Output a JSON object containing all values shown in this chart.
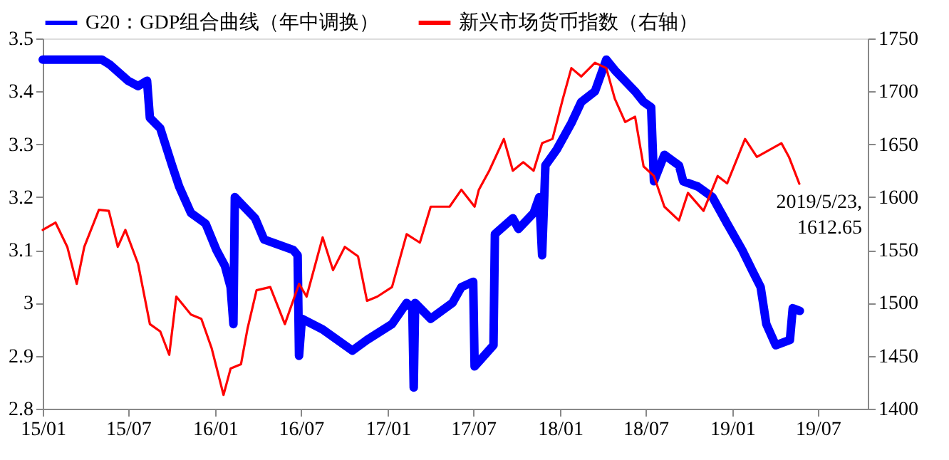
{
  "chart_data": {
    "type": "line",
    "legend": "top",
    "grid": false,
    "marker": "none",
    "line_style": "solid",
    "xlim": [
      "2015-01-01",
      "2019-10-15"
    ],
    "xticks": [
      {
        "value": "2015-01-01",
        "label": "15/01"
      },
      {
        "value": "2015-07-01",
        "label": "15/07"
      },
      {
        "value": "2016-01-01",
        "label": "16/01"
      },
      {
        "value": "2016-07-01",
        "label": "16/07"
      },
      {
        "value": "2017-01-01",
        "label": "17/01"
      },
      {
        "value": "2017-07-01",
        "label": "17/07"
      },
      {
        "value": "2018-01-01",
        "label": "18/01"
      },
      {
        "value": "2018-07-01",
        "label": "18/07"
      },
      {
        "value": "2019-01-01",
        "label": "19/01"
      },
      {
        "value": "2019-07-01",
        "label": "19/07"
      }
    ],
    "ylim": [
      2.8,
      3.5
    ],
    "yticks": [
      2.8,
      2.9,
      3,
      3.1,
      3.2,
      3.3,
      3.4,
      3.5
    ],
    "y2lim": [
      1400,
      1750
    ],
    "y2ticks": [
      1400,
      1450,
      1500,
      1550,
      1600,
      1650,
      1700,
      1750
    ],
    "annotations": [
      "2019/5/23,\n1612.65"
    ],
    "series": [
      {
        "name": "G20：GDP组合曲线（年中调换）",
        "color": "#0000ff",
        "x": [
          "2015-01-01",
          "2015-05-06",
          "2015-05-24",
          "2015-07-01",
          "2015-07-22",
          "2015-08-10",
          "2015-08-16",
          "2015-09-07",
          "2015-10-02",
          "2015-10-17",
          "2015-11-11",
          "2015-12-12",
          "2016-01-04",
          "2016-01-22",
          "2016-02-03",
          "2016-02-09",
          "2016-02-12",
          "2016-03-26",
          "2016-04-14",
          "2016-06-15",
          "2016-06-24",
          "2016-06-27",
          "2016-07-03",
          "2016-08-16",
          "2016-10-18",
          "2016-11-18",
          "2017-01-10",
          "2017-02-10",
          "2017-02-22",
          "2017-02-25",
          "2017-02-28",
          "2017-04-02",
          "2017-05-18",
          "2017-06-06",
          "2017-07-01",
          "2017-07-04",
          "2017-08-13",
          "2017-08-16",
          "2017-09-23",
          "2017-10-05",
          "2017-11-06",
          "2017-11-18",
          "2017-11-24",
          "2017-12-01",
          "2017-12-25",
          "2018-01-25",
          "2018-02-15",
          "2018-03-16",
          "2018-04-09",
          "2018-04-27",
          "2018-06-09",
          "2018-06-27",
          "2018-07-13",
          "2018-07-19",
          "2018-08-10",
          "2018-09-10",
          "2018-09-19",
          "2018-10-20",
          "2018-11-20",
          "2018-12-21",
          "2019-01-22",
          "2019-02-13",
          "2019-03-02",
          "2019-03-14",
          "2019-04-03",
          "2019-05-03",
          "2019-05-09",
          "2019-05-24"
        ],
        "values": [
          3.46,
          3.46,
          3.45,
          3.42,
          3.41,
          3.42,
          3.35,
          3.33,
          3.26,
          3.22,
          3.17,
          3.15,
          3.1,
          3.07,
          3.03,
          2.96,
          3.2,
          3.16,
          3.12,
          3.1,
          3.09,
          2.9,
          2.97,
          2.95,
          2.91,
          2.93,
          2.96,
          3.0,
          2.99,
          2.84,
          3.0,
          2.97,
          3.0,
          3.03,
          3.04,
          2.88,
          2.92,
          3.13,
          3.16,
          3.14,
          3.17,
          3.2,
          3.09,
          3.26,
          3.29,
          3.34,
          3.38,
          3.4,
          3.46,
          3.44,
          3.4,
          3.38,
          3.37,
          3.23,
          3.28,
          3.26,
          3.23,
          3.22,
          3.2,
          3.15,
          3.1,
          3.06,
          3.03,
          2.96,
          2.92,
          2.93,
          2.99,
          2.985
        ]
      },
      {
        "name": "新兴市场货币指数（右轴）",
        "color": "#ff0000",
        "axis": "y2",
        "x": [
          "2015-01-01",
          "2015-01-28",
          "2015-02-22",
          "2015-03-14",
          "2015-03-30",
          "2015-04-30",
          "2015-05-21",
          "2015-06-09",
          "2015-06-25",
          "2015-07-22",
          "2015-08-16",
          "2015-09-07",
          "2015-09-26",
          "2015-10-11",
          "2015-11-11",
          "2015-12-03",
          "2015-12-25",
          "2016-01-19",
          "2016-02-03",
          "2016-02-25",
          "2016-03-10",
          "2016-03-29",
          "2016-04-27",
          "2016-05-28",
          "2016-06-27",
          "2016-07-13",
          "2016-08-16",
          "2016-09-07",
          "2016-10-02",
          "2016-10-30",
          "2016-11-18",
          "2016-12-10",
          "2017-01-10",
          "2017-02-10",
          "2017-03-10",
          "2017-04-02",
          "2017-05-12",
          "2017-06-06",
          "2017-07-04",
          "2017-07-13",
          "2017-08-04",
          "2017-09-04",
          "2017-09-23",
          "2017-10-15",
          "2017-11-06",
          "2017-11-24",
          "2017-12-16",
          "2018-01-07",
          "2018-01-25",
          "2018-02-15",
          "2018-03-16",
          "2018-04-09",
          "2018-04-27",
          "2018-05-19",
          "2018-06-09",
          "2018-06-27",
          "2018-07-19",
          "2018-08-10",
          "2018-09-10",
          "2018-09-29",
          "2018-11-01",
          "2018-12-01",
          "2018-12-21",
          "2019-01-28",
          "2019-02-22",
          "2019-04-15",
          "2019-05-01",
          "2019-05-23"
        ],
        "values": [
          1569,
          1576,
          1553,
          1518,
          1553,
          1588,
          1587,
          1553,
          1569,
          1537,
          1480,
          1473,
          1451,
          1506,
          1489,
          1485,
          1457,
          1413,
          1438,
          1442,
          1476,
          1512,
          1515,
          1480,
          1518,
          1506,
          1562,
          1531,
          1553,
          1544,
          1502,
          1506,
          1515,
          1565,
          1557,
          1591,
          1591,
          1607,
          1591,
          1607,
          1625,
          1655,
          1625,
          1633,
          1625,
          1651,
          1655,
          1693,
          1722,
          1714,
          1727,
          1722,
          1693,
          1671,
          1676,
          1629,
          1620,
          1591,
          1578,
          1604,
          1587,
          1620,
          1613,
          1655,
          1638,
          1651,
          1638,
          1612.65
        ]
      }
    ]
  }
}
